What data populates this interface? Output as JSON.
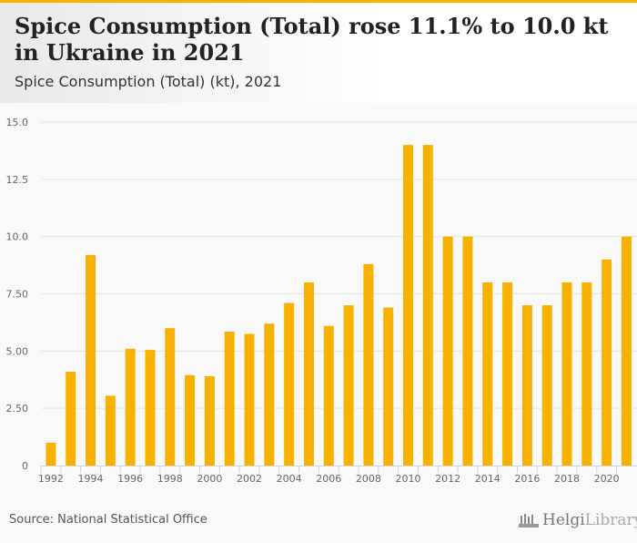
{
  "header": {
    "title": "Spice Consumption (Total) rose 11.1% to 10.0 kt in Ukraine in 2021",
    "subtitle": "Spice Consumption (Total) (kt), 2021"
  },
  "footer": {
    "source": "Source: National Statistical Office",
    "logo_main": "Helgi",
    "logo_rest": "Library."
  },
  "colors": {
    "bar": "#f7b100",
    "grid": "#e4e4e4",
    "axis": "#c8d4e8"
  },
  "chart_data": {
    "type": "bar",
    "title": "Spice Consumption (Total) (kt), 2021",
    "xlabel": "",
    "ylabel": "kt",
    "ylim": [
      0,
      15
    ],
    "yticks": [
      0,
      2.5,
      5,
      7.5,
      10,
      12.5,
      15
    ],
    "ytick_labels": [
      "0",
      "2.50",
      "5.00",
      "7.50",
      "10.0",
      "12.5",
      "15.0"
    ],
    "grid": true,
    "categories": [
      1992,
      1993,
      1994,
      1995,
      1996,
      1997,
      1998,
      1999,
      2000,
      2001,
      2002,
      2003,
      2004,
      2005,
      2006,
      2007,
      2008,
      2009,
      2010,
      2011,
      2012,
      2013,
      2014,
      2015,
      2016,
      2017,
      2018,
      2019,
      2020,
      2021
    ],
    "xtick_labels": [
      "1992",
      "1994",
      "1996",
      "1998",
      "2000",
      "2002",
      "2004",
      "2006",
      "2008",
      "2010",
      "2012",
      "2014",
      "2016",
      "2018",
      "2020"
    ],
    "values": [
      1.0,
      4.1,
      9.2,
      3.05,
      5.1,
      5.05,
      6.0,
      3.95,
      3.9,
      5.85,
      5.75,
      6.2,
      7.1,
      8.0,
      6.1,
      7.0,
      8.8,
      6.9,
      14.0,
      14.0,
      10.0,
      10.0,
      8.0,
      8.0,
      7.0,
      7.0,
      8.0,
      8.0,
      9.0,
      10.0
    ]
  }
}
